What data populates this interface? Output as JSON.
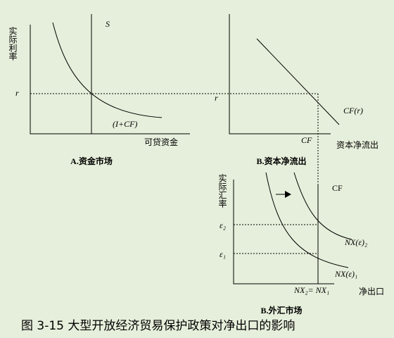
{
  "panel_a": {
    "y_label": "实际利率",
    "x_label": "可贷资金",
    "supply_label": "S",
    "demand_label": "(I+CF)",
    "rate_label": "r",
    "caption": "A.资金市场"
  },
  "panel_b": {
    "rate_label": "r",
    "curve_label": "CF(r)",
    "cf_label": "CF",
    "x_label": "资本净流出",
    "caption": "B.资本净流出"
  },
  "panel_c": {
    "y_label": "实际汇率",
    "cf_label": "CF",
    "e2_label": "ε₂",
    "e1_label": "ε₁",
    "nx2_label": "NX(ε)₂",
    "nx1_label": "NX(ε)₁",
    "eq_label": "NX₂= NX₁",
    "x_label": "净出口",
    "caption": "B.外汇市场"
  },
  "figure_caption": "图 3-15  大型开放经济贸易保护政策对净出口的影响"
}
